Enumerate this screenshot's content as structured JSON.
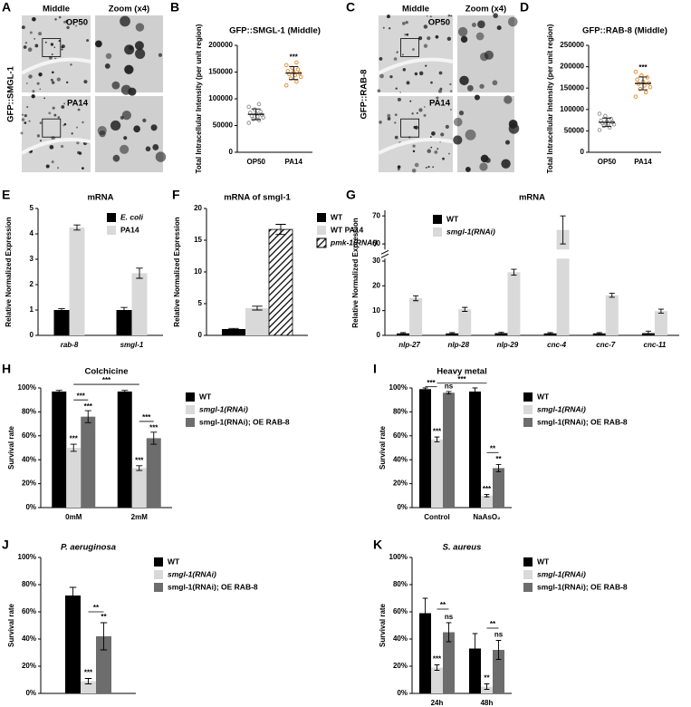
{
  "images": [
    {
      "label": "A",
      "y_label": "GFP::SMGL-1",
      "columns": [
        "Middle",
        "Zoom (x4)"
      ],
      "rows": [
        "OP50",
        "PA14"
      ]
    },
    {
      "label": "C",
      "y_label": "GFP::RAB-8",
      "columns": [
        "Middle",
        "Zoom (x4)"
      ],
      "rows": [
        "OP50",
        "PA14"
      ]
    }
  ],
  "chart_data": [
    {
      "type": "scatter_dot",
      "label": "B",
      "title": "GFP::SMGL-1 (Middle)",
      "y_label": "Total Intracellular Intensity (per unit region)",
      "categories": [
        "OP50",
        "PA14"
      ],
      "colors": [
        "#8c8c8c",
        "#e0892e"
      ],
      "points": [
        [
          55000,
          60000,
          62000,
          65000,
          67000,
          68000,
          70000,
          72000,
          74000,
          76000,
          80000,
          85000,
          90000
        ],
        [
          125000,
          132000,
          138000,
          141000,
          144000,
          146000,
          148000,
          150000,
          152000,
          155000,
          158000,
          163000,
          168000
        ]
      ],
      "values": [
        71000,
        148000
      ],
      "errors": [
        10000,
        12000
      ],
      "annotations": [
        "***"
      ],
      "ylim": [
        0,
        200000
      ],
      "yticks": [
        0,
        50000,
        100000,
        150000,
        200000
      ]
    },
    {
      "type": "scatter_dot",
      "label": "D",
      "title": "GFP::RAB-8 (Middle)",
      "y_label": "Total Intracellular Intensity (per unit region)",
      "categories": [
        "OP50",
        "PA14"
      ],
      "colors": [
        "#8c8c8c",
        "#e0892e"
      ],
      "points": [
        [
          52000,
          58000,
          62000,
          65000,
          67000,
          68000,
          70000,
          72000,
          74000,
          78000,
          85000,
          90000
        ],
        [
          130000,
          140000,
          148000,
          152000,
          156000,
          160000,
          162000,
          165000,
          170000,
          175000,
          180000,
          188000
        ]
      ],
      "values": [
        70000,
        161000
      ],
      "errors": [
        10000,
        15000
      ],
      "annotations": [
        "***"
      ],
      "ylim": [
        0,
        250000
      ],
      "yticks": [
        0,
        50000,
        100000,
        150000,
        200000,
        250000
      ]
    },
    {
      "type": "bar",
      "label": "E",
      "title": "mRNA",
      "y_label": "Relative Normalized Expression",
      "categories": [
        "rab-8",
        "smgl-1"
      ],
      "series": [
        {
          "name": "E. coli",
          "color": "#000000",
          "values": [
            1.0,
            1.0
          ],
          "errors": [
            0.05,
            0.1
          ]
        },
        {
          "name": "PA14",
          "color": "#d9d9d9",
          "values": [
            4.25,
            2.45
          ],
          "errors": [
            0.1,
            0.2
          ]
        }
      ],
      "ylim": [
        0,
        5
      ],
      "yticks": [
        0,
        1,
        2,
        3,
        4,
        5
      ]
    },
    {
      "type": "bar",
      "label": "F",
      "title": "mRNA of smgl-1",
      "y_label": "Relative Normalized Expression",
      "categories": [
        null
      ],
      "series": [
        {
          "name": "WT",
          "color": "#000000",
          "values": [
            1.0
          ],
          "errors": [
            0.1
          ]
        },
        {
          "name": "WT PA14",
          "color": "#d9d9d9",
          "values": [
            4.3
          ],
          "errors": [
            0.3
          ]
        },
        {
          "name": "pmk-1(RNAi)",
          "color": "#ffffff",
          "pattern": "hatch",
          "values": [
            16.7
          ],
          "errors": [
            0.8
          ]
        }
      ],
      "ylim": [
        0,
        20
      ],
      "yticks": [
        0,
        5,
        10,
        15,
        20
      ]
    },
    {
      "type": "bar",
      "label": "G",
      "title": "mRNA",
      "y_label": "Relative Normalized Expression",
      "categories": [
        "nlp-27",
        "nlp-28",
        "nlp-29",
        "cnc-4",
        "cnc-7",
        "cnc-11"
      ],
      "series": [
        {
          "name": "WT",
          "color": "#000000",
          "values": [
            0.8,
            0.8,
            0.9,
            0.8,
            0.8,
            0.9
          ],
          "errors": [
            0.3,
            0.3,
            0.3,
            0.3,
            0.3,
            0.8
          ]
        },
        {
          "name": "smgl-1(RNAi)",
          "color": "#d9d9d9",
          "values": [
            15,
            10.5,
            25.5,
            65,
            16.2,
            9.8
          ],
          "errors": [
            1,
            0.8,
            1.2,
            5,
            0.8,
            0.8
          ]
        }
      ],
      "ylim": [
        0,
        72
      ],
      "axis_break": [
        31,
        58
      ],
      "yticks": [
        0,
        10,
        20,
        30,
        60,
        70
      ]
    },
    {
      "type": "bar",
      "label": "H",
      "title": "Colchicine",
      "y_label": "Survival rate",
      "categories": [
        "0mM",
        "2mM"
      ],
      "series": [
        {
          "name": "WT",
          "color": "#000000",
          "values": [
            97,
            97
          ],
          "errors": [
            1,
            1
          ]
        },
        {
          "name": "smgl-1(RNAi)",
          "color": "#d9d9d9",
          "values": [
            50,
            33
          ],
          "errors": [
            3,
            2
          ]
        },
        {
          "name": "smgl-1(RNAi); OE RAB-8",
          "color": "#6d6d6d",
          "values": [
            76,
            58
          ],
          "errors": [
            5,
            5
          ]
        }
      ],
      "annotations": [
        "***",
        "***",
        "***",
        "***",
        "***",
        "***",
        "***"
      ],
      "ylim": [
        0,
        100
      ],
      "yticks": [
        {
          "value": 0,
          "label": "0%"
        },
        {
          "value": 20,
          "label": "20%"
        },
        {
          "value": 40,
          "label": "40%"
        },
        {
          "value": 60,
          "label": "60%"
        },
        {
          "value": 80,
          "label": "80%"
        },
        {
          "value": 100,
          "label": "100%"
        }
      ]
    },
    {
      "type": "bar",
      "label": "I",
      "title": "Heavy metal",
      "y_label": "Survival rate",
      "categories": [
        "Control",
        "NaAsO₂"
      ],
      "series": [
        {
          "name": "WT",
          "color": "#000000",
          "values": [
            99,
            97
          ],
          "errors": [
            1,
            3
          ]
        },
        {
          "name": "smgl-1(RNAi)",
          "color": "#d9d9d9",
          "values": [
            57,
            10
          ],
          "errors": [
            2,
            1
          ]
        },
        {
          "name": "smgl-1(RNAi); OE RAB-8",
          "color": "#6d6d6d",
          "values": [
            96,
            33
          ],
          "errors": [
            1,
            3
          ]
        }
      ],
      "annotations": [
        "***",
        "***",
        "ns",
        "***",
        "***",
        "**",
        "**"
      ],
      "ylim": [
        0,
        100
      ],
      "yticks": [
        {
          "value": 0,
          "label": "0%"
        },
        {
          "value": 20,
          "label": "20%"
        },
        {
          "value": 40,
          "label": "40%"
        },
        {
          "value": 60,
          "label": "60%"
        },
        {
          "value": 80,
          "label": "80%"
        },
        {
          "value": 100,
          "label": "100%"
        }
      ]
    },
    {
      "type": "bar",
      "label": "J",
      "title": "P. aeruginosa",
      "y_label": "Survival rate",
      "categories": [
        null
      ],
      "series": [
        {
          "name": "WT",
          "color": "#000000",
          "values": [
            72
          ],
          "errors": [
            6
          ]
        },
        {
          "name": "smgl-1(RNAi)",
          "color": "#d9d9d9",
          "values": [
            9
          ],
          "errors": [
            2
          ]
        },
        {
          "name": "smgl-1(RNAi); OE RAB-8",
          "color": "#6d6d6d",
          "values": [
            42
          ],
          "errors": [
            10
          ]
        }
      ],
      "annotations": [
        "***",
        "**",
        "**"
      ],
      "ylim": [
        0,
        100
      ],
      "yticks": [
        {
          "value": 0,
          "label": "0%"
        },
        {
          "value": 20,
          "label": "20%"
        },
        {
          "value": 40,
          "label": "40%"
        },
        {
          "value": 60,
          "label": "60%"
        },
        {
          "value": 80,
          "label": "80%"
        },
        {
          "value": 100,
          "label": "100%"
        }
      ]
    },
    {
      "type": "bar",
      "label": "K",
      "title": "S. aureus",
      "y_label": "Survival rate",
      "categories": [
        "24h",
        "48h"
      ],
      "series": [
        {
          "name": "WT",
          "color": "#000000",
          "values": [
            59,
            33
          ],
          "errors": [
            11,
            11
          ]
        },
        {
          "name": "smgl-1(RNAi)",
          "color": "#d9d9d9",
          "values": [
            19,
            5
          ],
          "errors": [
            2,
            2
          ]
        },
        {
          "name": "smgl-1(RNAi); OE RAB-8",
          "color": "#6d6d6d",
          "values": [
            45,
            32
          ],
          "errors": [
            7,
            7
          ]
        }
      ],
      "annotations": [
        "***",
        "**",
        "ns",
        "**",
        "**",
        "ns"
      ],
      "ylim": [
        0,
        100
      ],
      "yticks": [
        {
          "value": 0,
          "label": "0%"
        },
        {
          "value": 20,
          "label": "20%"
        },
        {
          "value": 40,
          "label": "40%"
        },
        {
          "value": 60,
          "label": "60%"
        },
        {
          "value": 80,
          "label": "80%"
        },
        {
          "value": 100,
          "label": "100%"
        }
      ]
    }
  ]
}
